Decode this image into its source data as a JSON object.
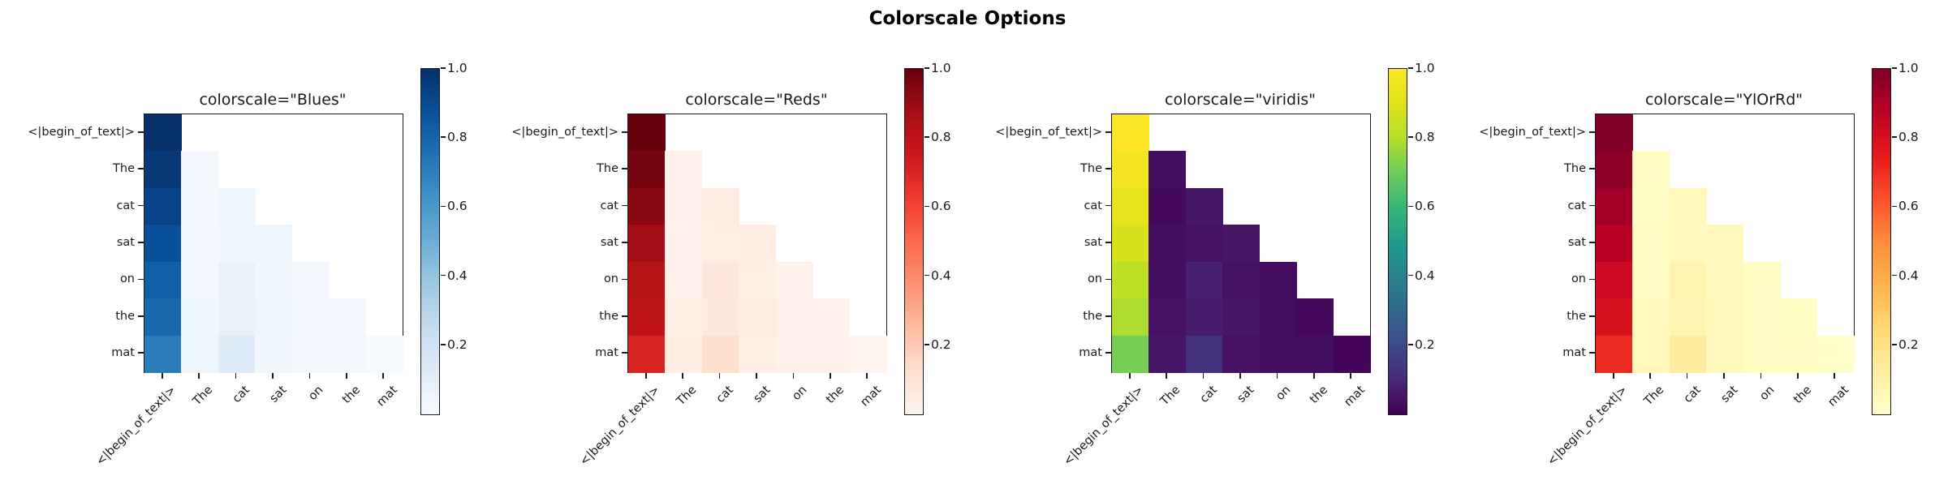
{
  "figure": {
    "title": "Colorscale Options",
    "background_color": "#ffffff",
    "text_color": "#1a1a1a"
  },
  "chart_data": {
    "type": "heatmap",
    "title": "Colorscale Options",
    "description_pattern": "lower-triangular causal attention matrix, identical data shown with four colorscales",
    "y_tokens": [
      "<|begin_of_text|>",
      "The",
      "cat",
      "sat",
      "on",
      "the",
      "mat"
    ],
    "x_tokens": [
      "<|begin_of_text|>",
      "The",
      "cat",
      "sat",
      "on",
      "the",
      "mat"
    ],
    "matrix": [
      [
        1.0,
        null,
        null,
        null,
        null,
        null,
        null
      ],
      [
        0.97,
        0.03,
        null,
        null,
        null,
        null,
        null
      ],
      [
        0.93,
        0.02,
        0.05,
        null,
        null,
        null,
        null
      ],
      [
        0.88,
        0.03,
        0.04,
        0.05,
        null,
        null,
        null
      ],
      [
        0.82,
        0.03,
        0.08,
        0.04,
        0.03,
        null,
        null
      ],
      [
        0.79,
        0.04,
        0.07,
        0.05,
        0.03,
        0.02,
        null
      ],
      [
        0.71,
        0.05,
        0.13,
        0.04,
        0.03,
        0.03,
        0.01
      ]
    ],
    "value_range": [
      0,
      1
    ],
    "colorbar_tick_values": [
      1.0,
      0.8,
      0.6,
      0.4,
      0.2
    ],
    "colorbar_tick_labels": [
      "1.0",
      "0.8",
      "0.6",
      "0.4",
      "0.2"
    ],
    "legend_position": "right-colorbar-per-panel",
    "grid": false,
    "panels": [
      {
        "title": "colorscale=\"Blues\"",
        "colorscale": "Blues"
      },
      {
        "title": "colorscale=\"Reds\"",
        "colorscale": "Reds"
      },
      {
        "title": "colorscale=\"viridis\"",
        "colorscale": "viridis"
      },
      {
        "title": "colorscale=\"YlOrRd\"",
        "colorscale": "YlOrRd"
      }
    ],
    "colorscales": {
      "Blues": [
        "#f7fbff",
        "#deebf7",
        "#c6dbef",
        "#9ecae1",
        "#6baed6",
        "#4292c6",
        "#2171b5",
        "#08519c",
        "#08306b"
      ],
      "Reds": [
        "#fff5f0",
        "#fee0d2",
        "#fcbba1",
        "#fc9272",
        "#fb6a4a",
        "#ef3b2c",
        "#cb181d",
        "#a50f15",
        "#67000d"
      ],
      "viridis": [
        "#440154",
        "#482878",
        "#3e4a89",
        "#31688e",
        "#26828e",
        "#1f9e89",
        "#35b779",
        "#6dcd59",
        "#b5de2b",
        "#dfe318",
        "#fde725"
      ],
      "YlOrRd": [
        "#ffffcc",
        "#ffeda0",
        "#fed976",
        "#feb24c",
        "#fd8d3c",
        "#fc4e2a",
        "#e31a1c",
        "#bd0026",
        "#800026"
      ]
    }
  }
}
